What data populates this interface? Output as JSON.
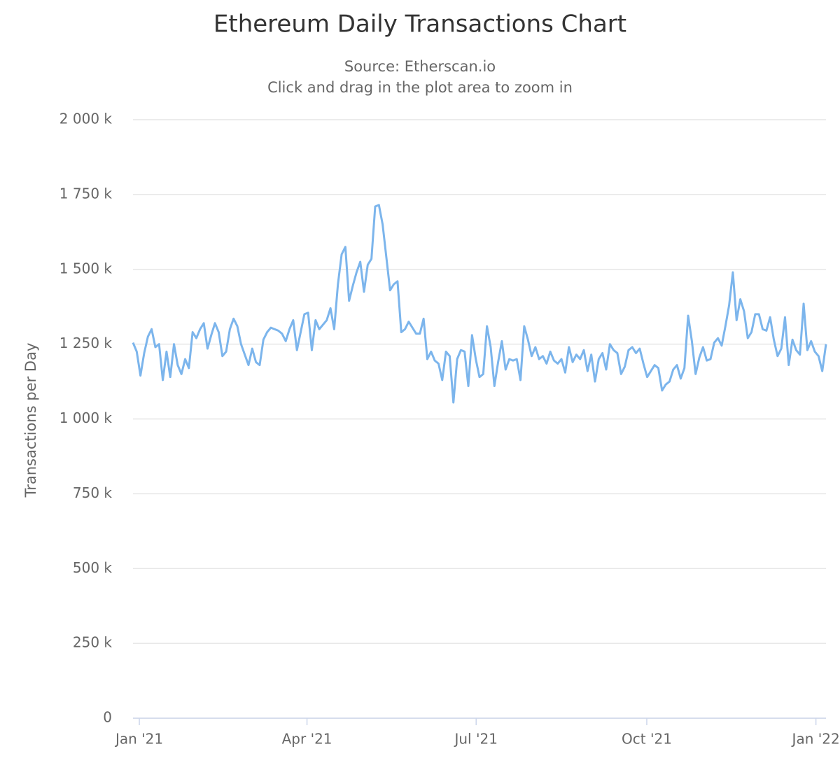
{
  "chart_data": {
    "type": "line",
    "title": "Ethereum Daily Transactions Chart",
    "subtitle": "Source: Etherscan.io",
    "subtitle2": "Click and drag in the plot area to zoom in",
    "y_label": "Transactions per Day",
    "grid": true,
    "series": [
      {
        "name": "Transactions",
        "color": "#7cb5ec",
        "values": [
          1255,
          1225,
          1145,
          1220,
          1275,
          1300,
          1240,
          1250,
          1130,
          1225,
          1140,
          1250,
          1180,
          1150,
          1200,
          1170,
          1290,
          1270,
          1300,
          1320,
          1235,
          1280,
          1320,
          1290,
          1210,
          1225,
          1300,
          1335,
          1310,
          1250,
          1215,
          1180,
          1235,
          1190,
          1180,
          1265,
          1290,
          1305,
          1300,
          1295,
          1285,
          1260,
          1300,
          1330,
          1230,
          1290,
          1350,
          1355,
          1230,
          1330,
          1300,
          1315,
          1330,
          1370,
          1300,
          1450,
          1550,
          1575,
          1395,
          1445,
          1490,
          1525,
          1425,
          1515,
          1535,
          1710,
          1715,
          1650,
          1540,
          1430,
          1450,
          1460,
          1290,
          1300,
          1325,
          1305,
          1285,
          1285,
          1335,
          1200,
          1225,
          1195,
          1185,
          1130,
          1225,
          1210,
          1055,
          1200,
          1230,
          1225,
          1110,
          1280,
          1200,
          1140,
          1150,
          1310,
          1240,
          1110,
          1190,
          1260,
          1165,
          1200,
          1195,
          1200,
          1130,
          1310,
          1265,
          1210,
          1240,
          1200,
          1210,
          1185,
          1225,
          1195,
          1185,
          1200,
          1155,
          1240,
          1190,
          1215,
          1200,
          1230,
          1160,
          1215,
          1125,
          1200,
          1220,
          1165,
          1250,
          1230,
          1220,
          1150,
          1175,
          1230,
          1240,
          1220,
          1235,
          1185,
          1140,
          1160,
          1180,
          1170,
          1095,
          1115,
          1125,
          1165,
          1180,
          1135,
          1170,
          1345,
          1260,
          1150,
          1205,
          1240,
          1195,
          1200,
          1255,
          1270,
          1245,
          1310,
          1380,
          1490,
          1330,
          1400,
          1360,
          1270,
          1290,
          1350,
          1350,
          1300,
          1295,
          1340,
          1265,
          1210,
          1235,
          1340,
          1180,
          1265,
          1230,
          1215,
          1385,
          1230,
          1260,
          1225,
          1210,
          1160,
          1250
        ]
      }
    ],
    "xlim": [
      0,
      186
    ],
    "xticks": [
      {
        "value": 1.7,
        "label": "Jan '21"
      },
      {
        "value": 46.7,
        "label": "Apr '21"
      },
      {
        "value": 92.1,
        "label": "Jul '21"
      },
      {
        "value": 137.9,
        "label": "Oct '21"
      },
      {
        "value": 183.3,
        "label": "Jan '22"
      }
    ],
    "ylim": [
      0,
      2000
    ],
    "yticks": [
      0,
      {
        "value": 250,
        "label": "250 k"
      },
      {
        "value": 500,
        "label": "500 k"
      },
      {
        "value": 750,
        "label": "750 k"
      },
      {
        "value": 1000,
        "label": "1 000 k"
      },
      {
        "value": 1250,
        "label": "1 250 k"
      },
      {
        "value": 1500,
        "label": "1 500 k"
      },
      {
        "value": 1750,
        "label": "1 750 k"
      },
      {
        "value": 2000,
        "label": "2 000 k"
      }
    ]
  }
}
